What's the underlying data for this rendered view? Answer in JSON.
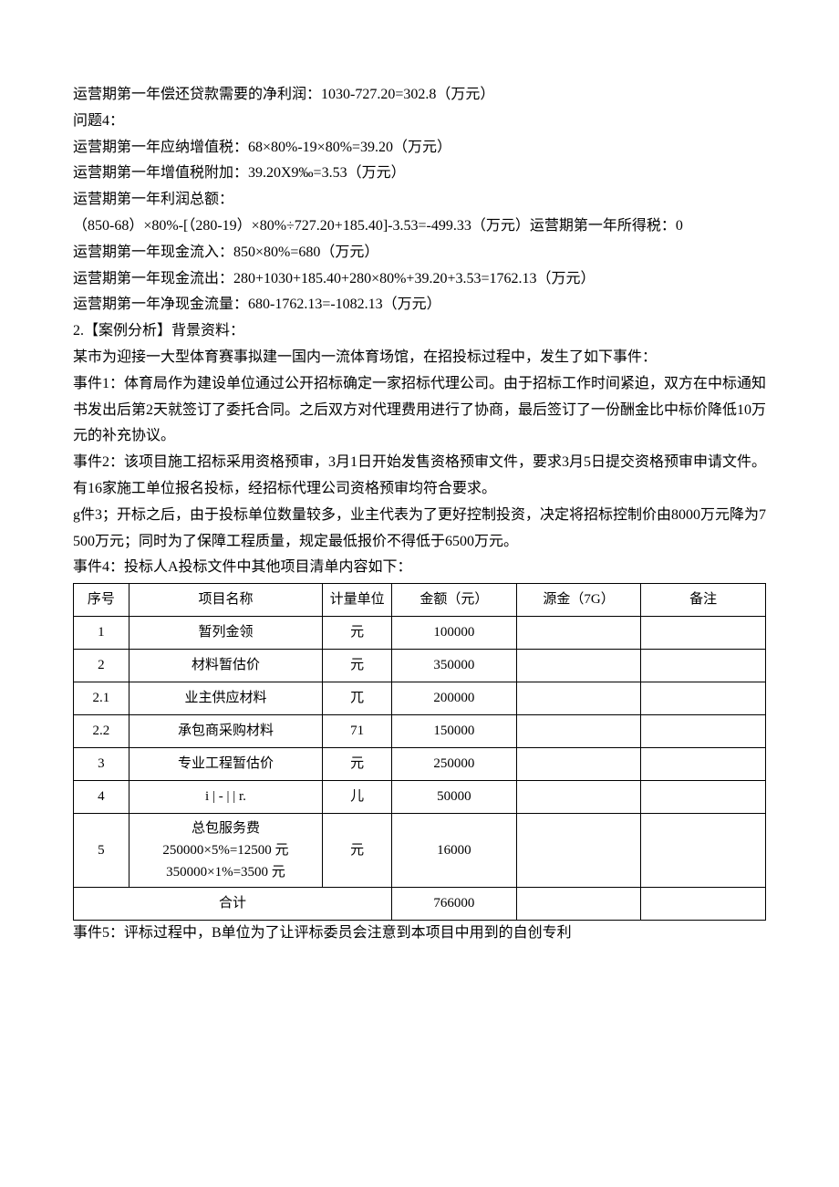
{
  "paragraphs": [
    "运营期第一年偿还贷款需要的净利润：1030-727.20=302.8（万元）",
    "问题4：",
    "运营期第一年应纳增值税：68×80%-19×80%=39.20（万元）",
    "运营期第一年增值税附加：39.20X9‰=3.53（万元）",
    "运营期第一年利润总额：",
    "（850-68）×80%-[（280-19）×80%÷727.20+185.40]-3.53=-499.33（万元）运营期第一年所得税：0",
    "运营期第一年现金流入：850×80%=680（万元）",
    "运营期第一年现金流出：280+1030+185.40+280×80%+39.20+3.53=1762.13（万元）",
    "运营期第一年净现金流量：680-1762.13=-1082.13（万元）",
    "2.【案例分析】背景资料：",
    "某市为迎接一大型体育赛事拟建一国内一流体育场馆，在招投标过程中，发生了如下事件：",
    "事件1：体育局作为建设单位通过公开招标确定一家招标代理公司。由于招标工作时间紧迫，双方在中标通知书发出后第2天就签订了委托合同。之后双方对代理费用进行了协商，最后签订了一份酬金比中标价降低10万元的补充协议。",
    "事件2：该项目施工招标采用资格预审，3月1日开始发售资格预审文件，要求3月5日提交资格预审申请文件。有16家施工单位报名投标，经招标代理公司资格预审均符合要求。",
    "g件3；开标之后，由于投标单位数量较多，业主代表为了更好控制投资，决定将招标控制价由8000万元降为7500万元；同时为了保障工程质量，规定最低报价不得低于6500万元。",
    "事件4：投标人A投标文件中其他项目清单内容如下："
  ],
  "table": {
    "headers": {
      "col1": "序号",
      "col2": "项目名称",
      "col3": "计量单位",
      "col4": "金额（元）",
      "col5": "源金（7G）",
      "col6": "备注"
    },
    "rows": [
      {
        "seq": "1",
        "name": "暂列金领",
        "unit": "元",
        "amount": "100000",
        "source": "",
        "remark": ""
      },
      {
        "seq": "2",
        "name": "材料暂估价",
        "unit": "元",
        "amount": "350000",
        "source": "",
        "remark": ""
      },
      {
        "seq": "2.1",
        "name": "业主供应材料",
        "unit": "兀",
        "amount": "200000",
        "source": "",
        "remark": ""
      },
      {
        "seq": "2.2",
        "name": "承包商采购材料",
        "unit": "71",
        "amount": "150000",
        "source": "",
        "remark": ""
      },
      {
        "seq": "3",
        "name": "专业工程暂估价",
        "unit": "元",
        "amount": "250000",
        "source": "",
        "remark": ""
      },
      {
        "seq": "4",
        "name": "i | - | | r.",
        "unit": "儿",
        "amount": "50000",
        "source": "",
        "remark": ""
      },
      {
        "seq": "5",
        "name_line1": "总包服务费",
        "name_line2": "250000×5%=12500 元",
        "name_line3": "350000×1%=3500 元",
        "unit": "元",
        "amount": "16000",
        "source": "",
        "remark": ""
      }
    ],
    "total": {
      "label": "合计",
      "amount": "766000"
    }
  },
  "after_paragraphs": [
    "事件5：评标过程中，B单位为了让评标委员会注意到本项目中用到的自创专利"
  ]
}
